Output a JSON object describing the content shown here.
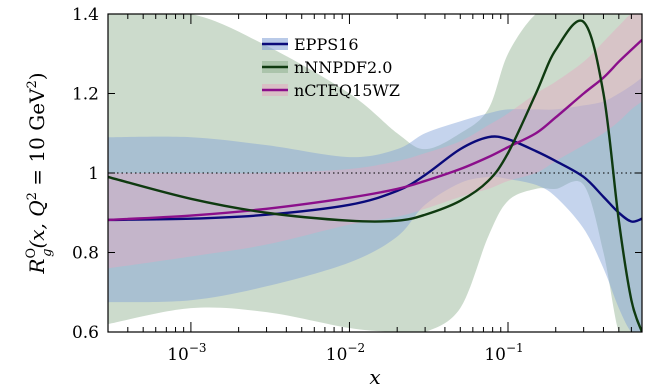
{
  "chart_data": {
    "type": "line",
    "xscale": "log",
    "xlim": [
      0.0003,
      0.7
    ],
    "ylim": [
      0.6,
      1.4
    ],
    "grid": false,
    "legend_position": "top-center",
    "xlabel": "x",
    "ylabel": "R_g^O(x, Q^2 = 10 GeV^2)",
    "ylabel_parts": {
      "main": "R",
      "sub": "g",
      "sup": "O",
      "args": "(x,  Q",
      "args_sup": "2",
      "rest": " = 10 GeV",
      "rest_sup": "2",
      "close": ")"
    },
    "yticks": [
      0.6,
      0.8,
      1,
      1.2,
      1.4
    ],
    "ytick_labels": [
      "0.6",
      "0.8",
      "1",
      "1.2",
      "1.4"
    ],
    "xticks": [
      0.001,
      0.01,
      0.1
    ],
    "xtick_labels": [
      {
        "base": "10",
        "exp": "−3"
      },
      {
        "base": "10",
        "exp": "−2"
      },
      {
        "base": "10",
        "exp": "−1"
      }
    ],
    "reference_line": 1.0,
    "series": [
      {
        "name": "EPPS16",
        "color": "#0a0a7a",
        "band_color": "#7f9fd6",
        "x": [
          0.0003,
          0.001,
          0.003,
          0.01,
          0.02,
          0.03,
          0.05,
          0.075,
          0.1,
          0.15,
          0.2,
          0.3,
          0.4,
          0.5,
          0.6,
          0.7
        ],
        "central": [
          0.882,
          0.885,
          0.895,
          0.92,
          0.955,
          0.995,
          1.06,
          1.09,
          1.085,
          1.055,
          1.03,
          0.99,
          0.94,
          0.9,
          0.878,
          0.885
        ],
        "upper": [
          1.09,
          1.09,
          1.07,
          1.04,
          1.06,
          1.1,
          1.13,
          1.15,
          1.16,
          1.16,
          1.16,
          1.17,
          1.18,
          1.2,
          1.22,
          1.24
        ],
        "lower": [
          0.675,
          0.68,
          0.715,
          0.775,
          0.84,
          0.92,
          0.975,
          0.99,
          0.985,
          0.97,
          0.94,
          0.86,
          0.76,
          0.66,
          0.6,
          0.6
        ]
      },
      {
        "name": "nNNPDF2.0",
        "color": "#0f3a10",
        "band_color": "#8fb08f",
        "x": [
          0.0003,
          0.001,
          0.003,
          0.01,
          0.02,
          0.03,
          0.05,
          0.075,
          0.1,
          0.15,
          0.2,
          0.3,
          0.4,
          0.5,
          0.6,
          0.7
        ],
        "central": [
          0.99,
          0.935,
          0.9,
          0.88,
          0.88,
          0.895,
          0.93,
          0.98,
          1.05,
          1.2,
          1.31,
          1.38,
          1.2,
          0.88,
          0.68,
          0.6
        ],
        "upper": [
          1.4,
          1.4,
          1.32,
          1.2,
          1.1,
          1.06,
          1.1,
          1.16,
          1.3,
          1.4,
          1.4,
          1.4,
          1.4,
          1.4,
          1.4,
          1.4
        ],
        "lower": [
          0.62,
          0.66,
          0.65,
          0.61,
          0.6,
          0.6,
          0.66,
          0.84,
          0.93,
          0.96,
          0.96,
          0.97,
          0.8,
          0.6,
          0.6,
          0.6
        ]
      },
      {
        "name": "nCTEQ15WZ",
        "color": "#8b0f8b",
        "band_color": "#e4a8c0",
        "x": [
          0.0003,
          0.001,
          0.003,
          0.01,
          0.02,
          0.03,
          0.05,
          0.075,
          0.1,
          0.15,
          0.2,
          0.3,
          0.4,
          0.5,
          0.6,
          0.7
        ],
        "central": [
          0.882,
          0.893,
          0.91,
          0.938,
          0.96,
          0.98,
          1.01,
          1.04,
          1.065,
          1.1,
          1.14,
          1.2,
          1.24,
          1.28,
          1.31,
          1.335
        ],
        "upper": [
          1.0,
          1.0,
          1.0,
          1.01,
          1.03,
          1.05,
          1.08,
          1.12,
          1.15,
          1.2,
          1.23,
          1.28,
          1.33,
          1.37,
          1.4,
          1.4
        ],
        "lower": [
          0.76,
          0.79,
          0.82,
          0.87,
          0.89,
          0.91,
          0.94,
          0.96,
          0.98,
          1.0,
          1.03,
          1.07,
          1.1,
          1.13,
          1.16,
          1.18
        ]
      }
    ]
  }
}
